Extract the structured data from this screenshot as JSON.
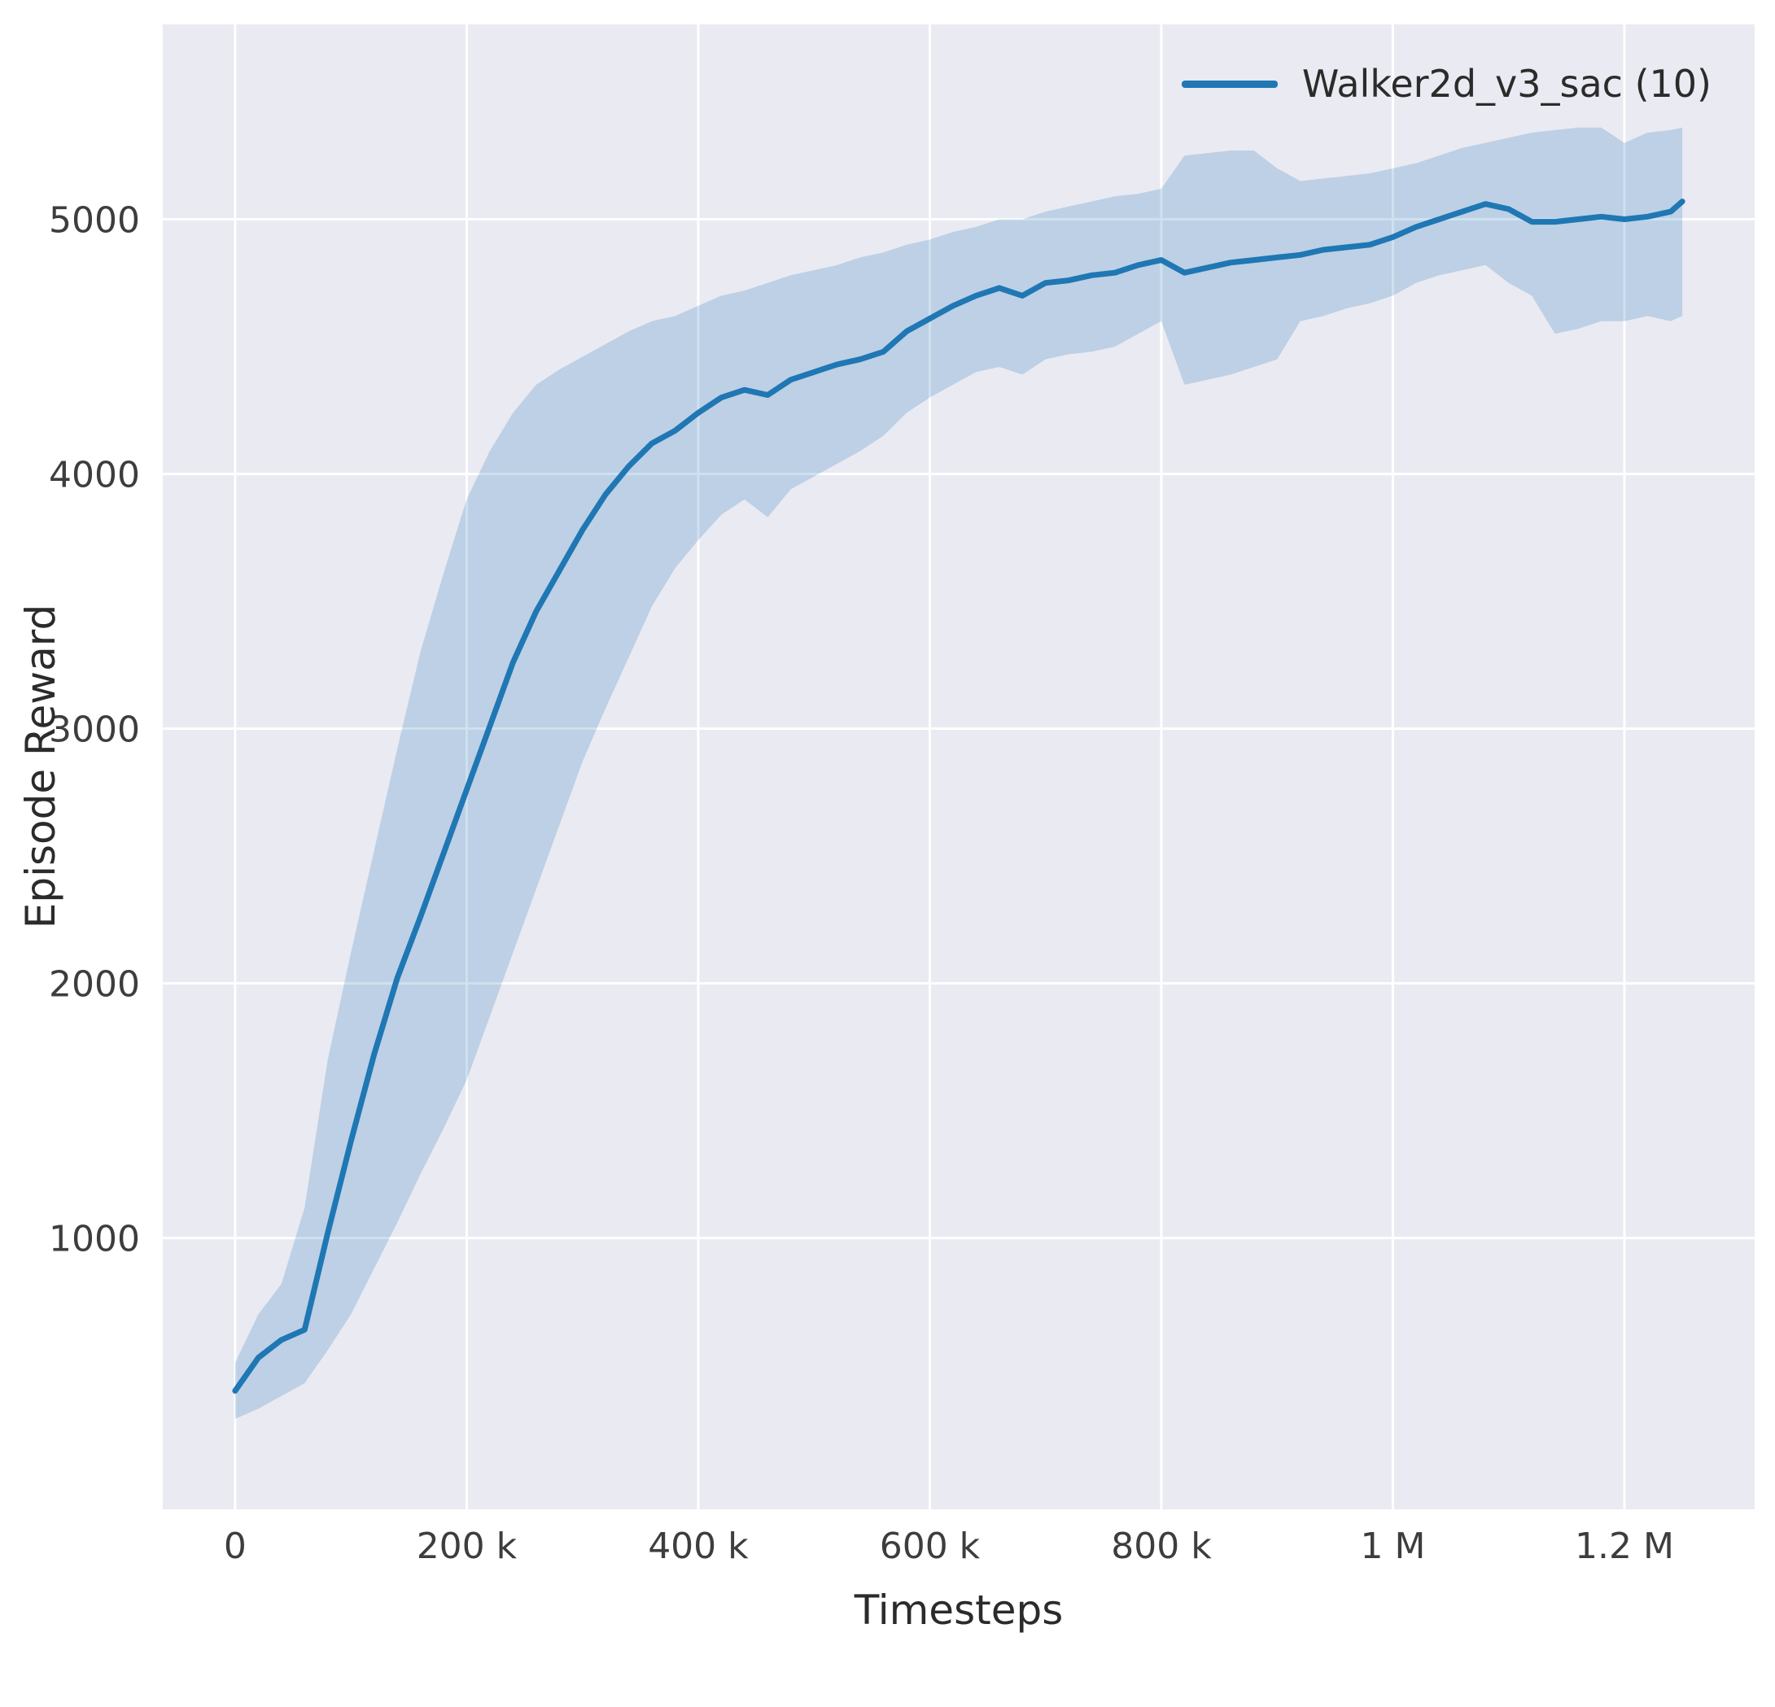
{
  "chart_data": {
    "type": "line",
    "title": "",
    "xlabel": "Timesteps",
    "ylabel": "Episode Reward",
    "legend_position": "upper right",
    "grid": true,
    "xlim": [
      -62500,
      1312500
    ],
    "ylim": [
      -65,
      5765
    ],
    "x_ticks": [
      {
        "value": 0,
        "label": "0"
      },
      {
        "value": 200000,
        "label": "200 k"
      },
      {
        "value": 400000,
        "label": "400 k"
      },
      {
        "value": 600000,
        "label": "600 k"
      },
      {
        "value": 800000,
        "label": "800 k"
      },
      {
        "value": 1000000,
        "label": "1 M"
      },
      {
        "value": 1200000,
        "label": "1.2 M"
      }
    ],
    "y_ticks": [
      {
        "value": 1000,
        "label": "1000"
      },
      {
        "value": 2000,
        "label": "2000"
      },
      {
        "value": 3000,
        "label": "3000"
      },
      {
        "value": 4000,
        "label": "4000"
      },
      {
        "value": 5000,
        "label": "5000"
      }
    ],
    "colors": {
      "plot_background": "#eaeaf2",
      "grid": "#ffffff",
      "text": "#3d3d3d",
      "line": "#1f77b4"
    },
    "series": [
      {
        "name": "Walker2d_v3_sac (10)",
        "color": "#1f77b4",
        "band_opacity": 0.22,
        "x": [
          0,
          20000,
          40000,
          60000,
          80000,
          100000,
          120000,
          140000,
          160000,
          180000,
          200000,
          220000,
          240000,
          260000,
          280000,
          300000,
          320000,
          340000,
          360000,
          380000,
          400000,
          420000,
          440000,
          460000,
          480000,
          500000,
          520000,
          540000,
          560000,
          580000,
          600000,
          620000,
          640000,
          660000,
          680000,
          700000,
          720000,
          740000,
          760000,
          780000,
          800000,
          820000,
          840000,
          860000,
          880000,
          900000,
          920000,
          940000,
          960000,
          980000,
          1000000,
          1020000,
          1040000,
          1060000,
          1080000,
          1100000,
          1120000,
          1140000,
          1160000,
          1180000,
          1200000,
          1220000,
          1240000,
          1250000
        ],
        "mean": [
          400,
          530,
          600,
          640,
          1020,
          1380,
          1720,
          2020,
          2260,
          2510,
          2760,
          3010,
          3260,
          3460,
          3620,
          3780,
          3920,
          4030,
          4120,
          4170,
          4240,
          4300,
          4330,
          4310,
          4370,
          4400,
          4430,
          4450,
          4480,
          4560,
          4610,
          4660,
          4700,
          4730,
          4700,
          4750,
          4760,
          4780,
          4790,
          4820,
          4840,
          4790,
          4810,
          4830,
          4840,
          4850,
          4860,
          4880,
          4890,
          4900,
          4930,
          4970,
          5000,
          5030,
          5060,
          5040,
          4990,
          4990,
          5000,
          5010,
          5000,
          5010,
          5030,
          5070
        ],
        "low": [
          290,
          330,
          380,
          430,
          560,
          700,
          880,
          1060,
          1250,
          1430,
          1620,
          1870,
          2120,
          2370,
          2620,
          2870,
          3080,
          3280,
          3480,
          3630,
          3740,
          3840,
          3900,
          3830,
          3940,
          3990,
          4040,
          4090,
          4150,
          4240,
          4300,
          4350,
          4400,
          4420,
          4390,
          4450,
          4470,
          4480,
          4500,
          4550,
          4600,
          4350,
          4370,
          4390,
          4420,
          4450,
          4600,
          4620,
          4650,
          4670,
          4700,
          4750,
          4780,
          4800,
          4820,
          4750,
          4700,
          4550,
          4570,
          4600,
          4600,
          4620,
          4600,
          4620
        ],
        "high": [
          510,
          700,
          820,
          1120,
          1700,
          2120,
          2520,
          2920,
          3300,
          3610,
          3900,
          4090,
          4240,
          4350,
          4410,
          4460,
          4510,
          4560,
          4600,
          4620,
          4660,
          4700,
          4720,
          4750,
          4780,
          4800,
          4820,
          4850,
          4870,
          4900,
          4920,
          4950,
          4970,
          5000,
          5000,
          5030,
          5050,
          5070,
          5090,
          5100,
          5120,
          5250,
          5260,
          5270,
          5270,
          5200,
          5150,
          5160,
          5170,
          5180,
          5200,
          5220,
          5250,
          5280,
          5300,
          5320,
          5340,
          5350,
          5360,
          5360,
          5300,
          5340,
          5350,
          5360
        ]
      }
    ]
  }
}
